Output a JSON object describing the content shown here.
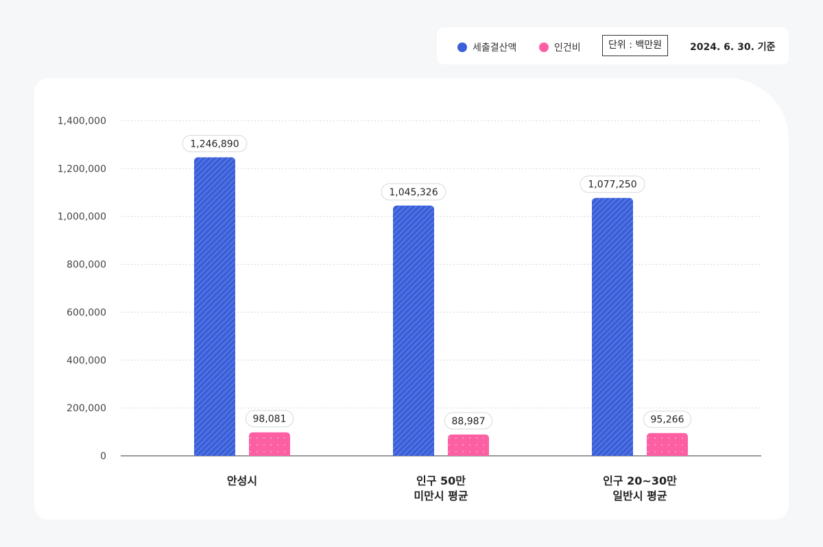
{
  "legend": {
    "items": [
      {
        "label": "세출결산액",
        "color": "#3a5fd9"
      },
      {
        "label": "인건비",
        "color": "#fd5fa3"
      }
    ],
    "unit": "단위 : 백만원",
    "as_of": "2024. 6. 30. 기준"
  },
  "chart_data": {
    "type": "bar",
    "categories": [
      [
        "안성시"
      ],
      [
        "인구 50만",
        "미만시 평균"
      ],
      [
        "인구 20~30만",
        "일반시 평균"
      ]
    ],
    "series": [
      {
        "name": "세출결산액",
        "color": "#3a5fd9",
        "values": [
          1246890,
          1045326,
          1077250
        ],
        "labels": [
          "1,246,890",
          "1,045,326",
          "1,077,250"
        ]
      },
      {
        "name": "인건비",
        "color": "#fd5fa3",
        "values": [
          98081,
          88987,
          95266
        ],
        "labels": [
          "98,081",
          "88,987",
          "95,266"
        ]
      }
    ],
    "ylim": [
      0,
      1400000
    ],
    "yticks": [
      0,
      200000,
      400000,
      600000,
      800000,
      1000000,
      1200000,
      1400000
    ],
    "ytick_labels": [
      "0",
      "200,000",
      "400,000",
      "600,000",
      "800,000",
      "1,000,000",
      "1,200,000",
      "1,400,000"
    ],
    "grid": true,
    "legend_position": "top-right"
  }
}
